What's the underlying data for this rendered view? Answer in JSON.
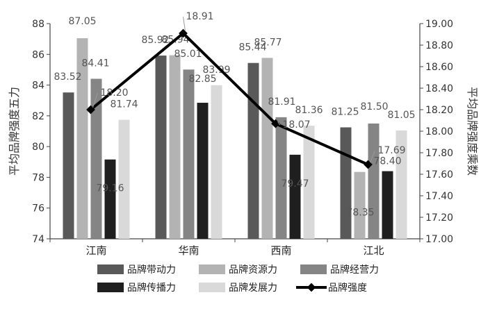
{
  "chart_data": {
    "type": "bar",
    "title": "",
    "categories": [
      "江南",
      "华南",
      "西南",
      "江北"
    ],
    "series": [
      {
        "name": "品牌带动力",
        "color": "#595959",
        "values": [
          83.52,
          85.92,
          85.44,
          81.25
        ]
      },
      {
        "name": "品牌资源力",
        "color": "#b3b3b3",
        "values": [
          87.05,
          85.94,
          85.77,
          78.35
        ]
      },
      {
        "name": "品牌经营力",
        "color": "#858585",
        "values": [
          84.41,
          85.01,
          81.91,
          81.5
        ]
      },
      {
        "name": "品牌传播力",
        "color": "#1f1f1f",
        "values": [
          79.16,
          82.85,
          79.47,
          78.4
        ]
      },
      {
        "name": "品牌发展力",
        "color": "#d9d9d9",
        "values": [
          81.74,
          83.99,
          81.36,
          81.05
        ]
      }
    ],
    "line_series": {
      "name": "品牌强度",
      "color": "#000000",
      "values": [
        18.2,
        18.91,
        18.07,
        17.69
      ]
    },
    "bar_labels": [
      [
        "83.52",
        "85.92",
        "85.44",
        "81.25"
      ],
      [
        "87.05",
        "85.94",
        "85.77",
        "78.35"
      ],
      [
        "84.41",
        "85.01",
        "81.91",
        "81.50"
      ],
      [
        "79.16",
        "82.85",
        "79.47",
        "78.40"
      ],
      [
        "81.74",
        "83.99",
        "81.36",
        "81.05"
      ]
    ],
    "line_labels": [
      "18.20",
      "18.91",
      "18.07",
      "17.69"
    ],
    "ylabel_left": "平均品牌强度五力",
    "ylabel_right": "平均品牌强度乘数",
    "ylim_left": [
      74,
      88
    ],
    "yticks_left": [
      "74",
      "76",
      "78",
      "80",
      "82",
      "84",
      "86",
      "88"
    ],
    "ylim_right": [
      17.0,
      19.0
    ],
    "yticks_right": [
      "17.00",
      "17.20",
      "17.40",
      "17.60",
      "17.80",
      "18.00",
      "18.20",
      "18.40",
      "18.60",
      "18.80",
      "19.00"
    ],
    "legend_position": "bottom",
    "grid": false
  }
}
